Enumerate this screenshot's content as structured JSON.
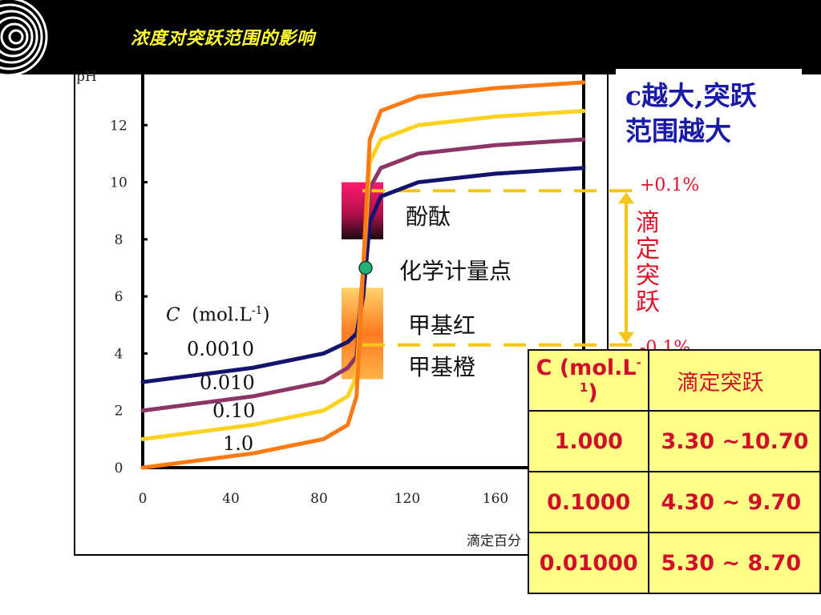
{
  "header": {
    "title": "浓度对突跃范围的影响"
  },
  "note": {
    "line1": "c越大,突跃",
    "line2": "范围越大"
  },
  "indicators": {
    "phenolphthalein": "酚酞",
    "equivalence_point": "化学计量点",
    "methyl_red": "甲基红",
    "methyl_orange": "甲基橙"
  },
  "jump_range": {
    "plus": "+0.1%",
    "minus": "-0.1%",
    "label": "滴定突跃"
  },
  "concentration_labels": {
    "header_symbol": "C",
    "header_unit": "(mol.L",
    "header_exp": "-1",
    "header_close": ")",
    "c1": "0.0010",
    "c2": "0.010",
    "c3": "0.10",
    "c4": "1.0"
  },
  "table": {
    "header_c": "C (mol.L",
    "header_c_exp": "-1",
    "header_c_close": ")",
    "header_range": "滴定突跃",
    "rows": [
      {
        "c": "1.000",
        "range": "3.30 ~10.70"
      },
      {
        "c": "0.1000",
        "range": "4.30 ~ 9.70"
      },
      {
        "c": "0.01000",
        "range": "5.30 ~ 8.70"
      }
    ]
  },
  "colors": {
    "header_bg": "#000000",
    "title": "#ffff33",
    "note": "#1a1aa8",
    "red_text": "#e0102a",
    "table_bg": "#ffff88",
    "dashed": "#f5c518"
  },
  "chart_data": {
    "type": "line",
    "xlabel": "滴定百分",
    "ylabel": "pH",
    "xlim": [
      0,
      200
    ],
    "ylim": [
      0,
      14
    ],
    "x_ticks": [
      0,
      40,
      80,
      120,
      160
    ],
    "y_ticks": [
      0,
      2,
      4,
      6,
      8,
      10,
      12
    ],
    "series": [
      {
        "name": "0.0010",
        "color": "#14146e",
        "x": [
          0,
          50,
          82,
          93,
          97,
          100,
          103,
          108,
          125,
          160,
          200
        ],
        "y": [
          3.0,
          3.5,
          4.0,
          4.4,
          4.7,
          6.0,
          8.6,
          9.5,
          10.0,
          10.3,
          10.5
        ]
      },
      {
        "name": "0.010",
        "color": "#8e3567",
        "x": [
          0,
          50,
          82,
          93,
          97,
          100,
          103,
          108,
          125,
          160,
          200
        ],
        "y": [
          2.0,
          2.5,
          3.0,
          3.5,
          3.9,
          7.0,
          9.8,
          10.5,
          11.0,
          11.3,
          11.5
        ]
      },
      {
        "name": "0.10",
        "color": "#ffd21f",
        "x": [
          0,
          50,
          82,
          93,
          97,
          100,
          103,
          108,
          125,
          160,
          200
        ],
        "y": [
          1.0,
          1.5,
          2.0,
          2.5,
          3.2,
          7.0,
          10.7,
          11.5,
          12.0,
          12.3,
          12.5
        ]
      },
      {
        "name": "1.0",
        "color": "#ff7a12",
        "x": [
          0,
          50,
          82,
          93,
          97,
          100,
          103,
          108,
          125,
          160,
          200
        ],
        "y": [
          0.0,
          0.5,
          1.0,
          1.5,
          2.5,
          7.0,
          11.5,
          12.5,
          13.0,
          13.3,
          13.5
        ]
      }
    ]
  }
}
